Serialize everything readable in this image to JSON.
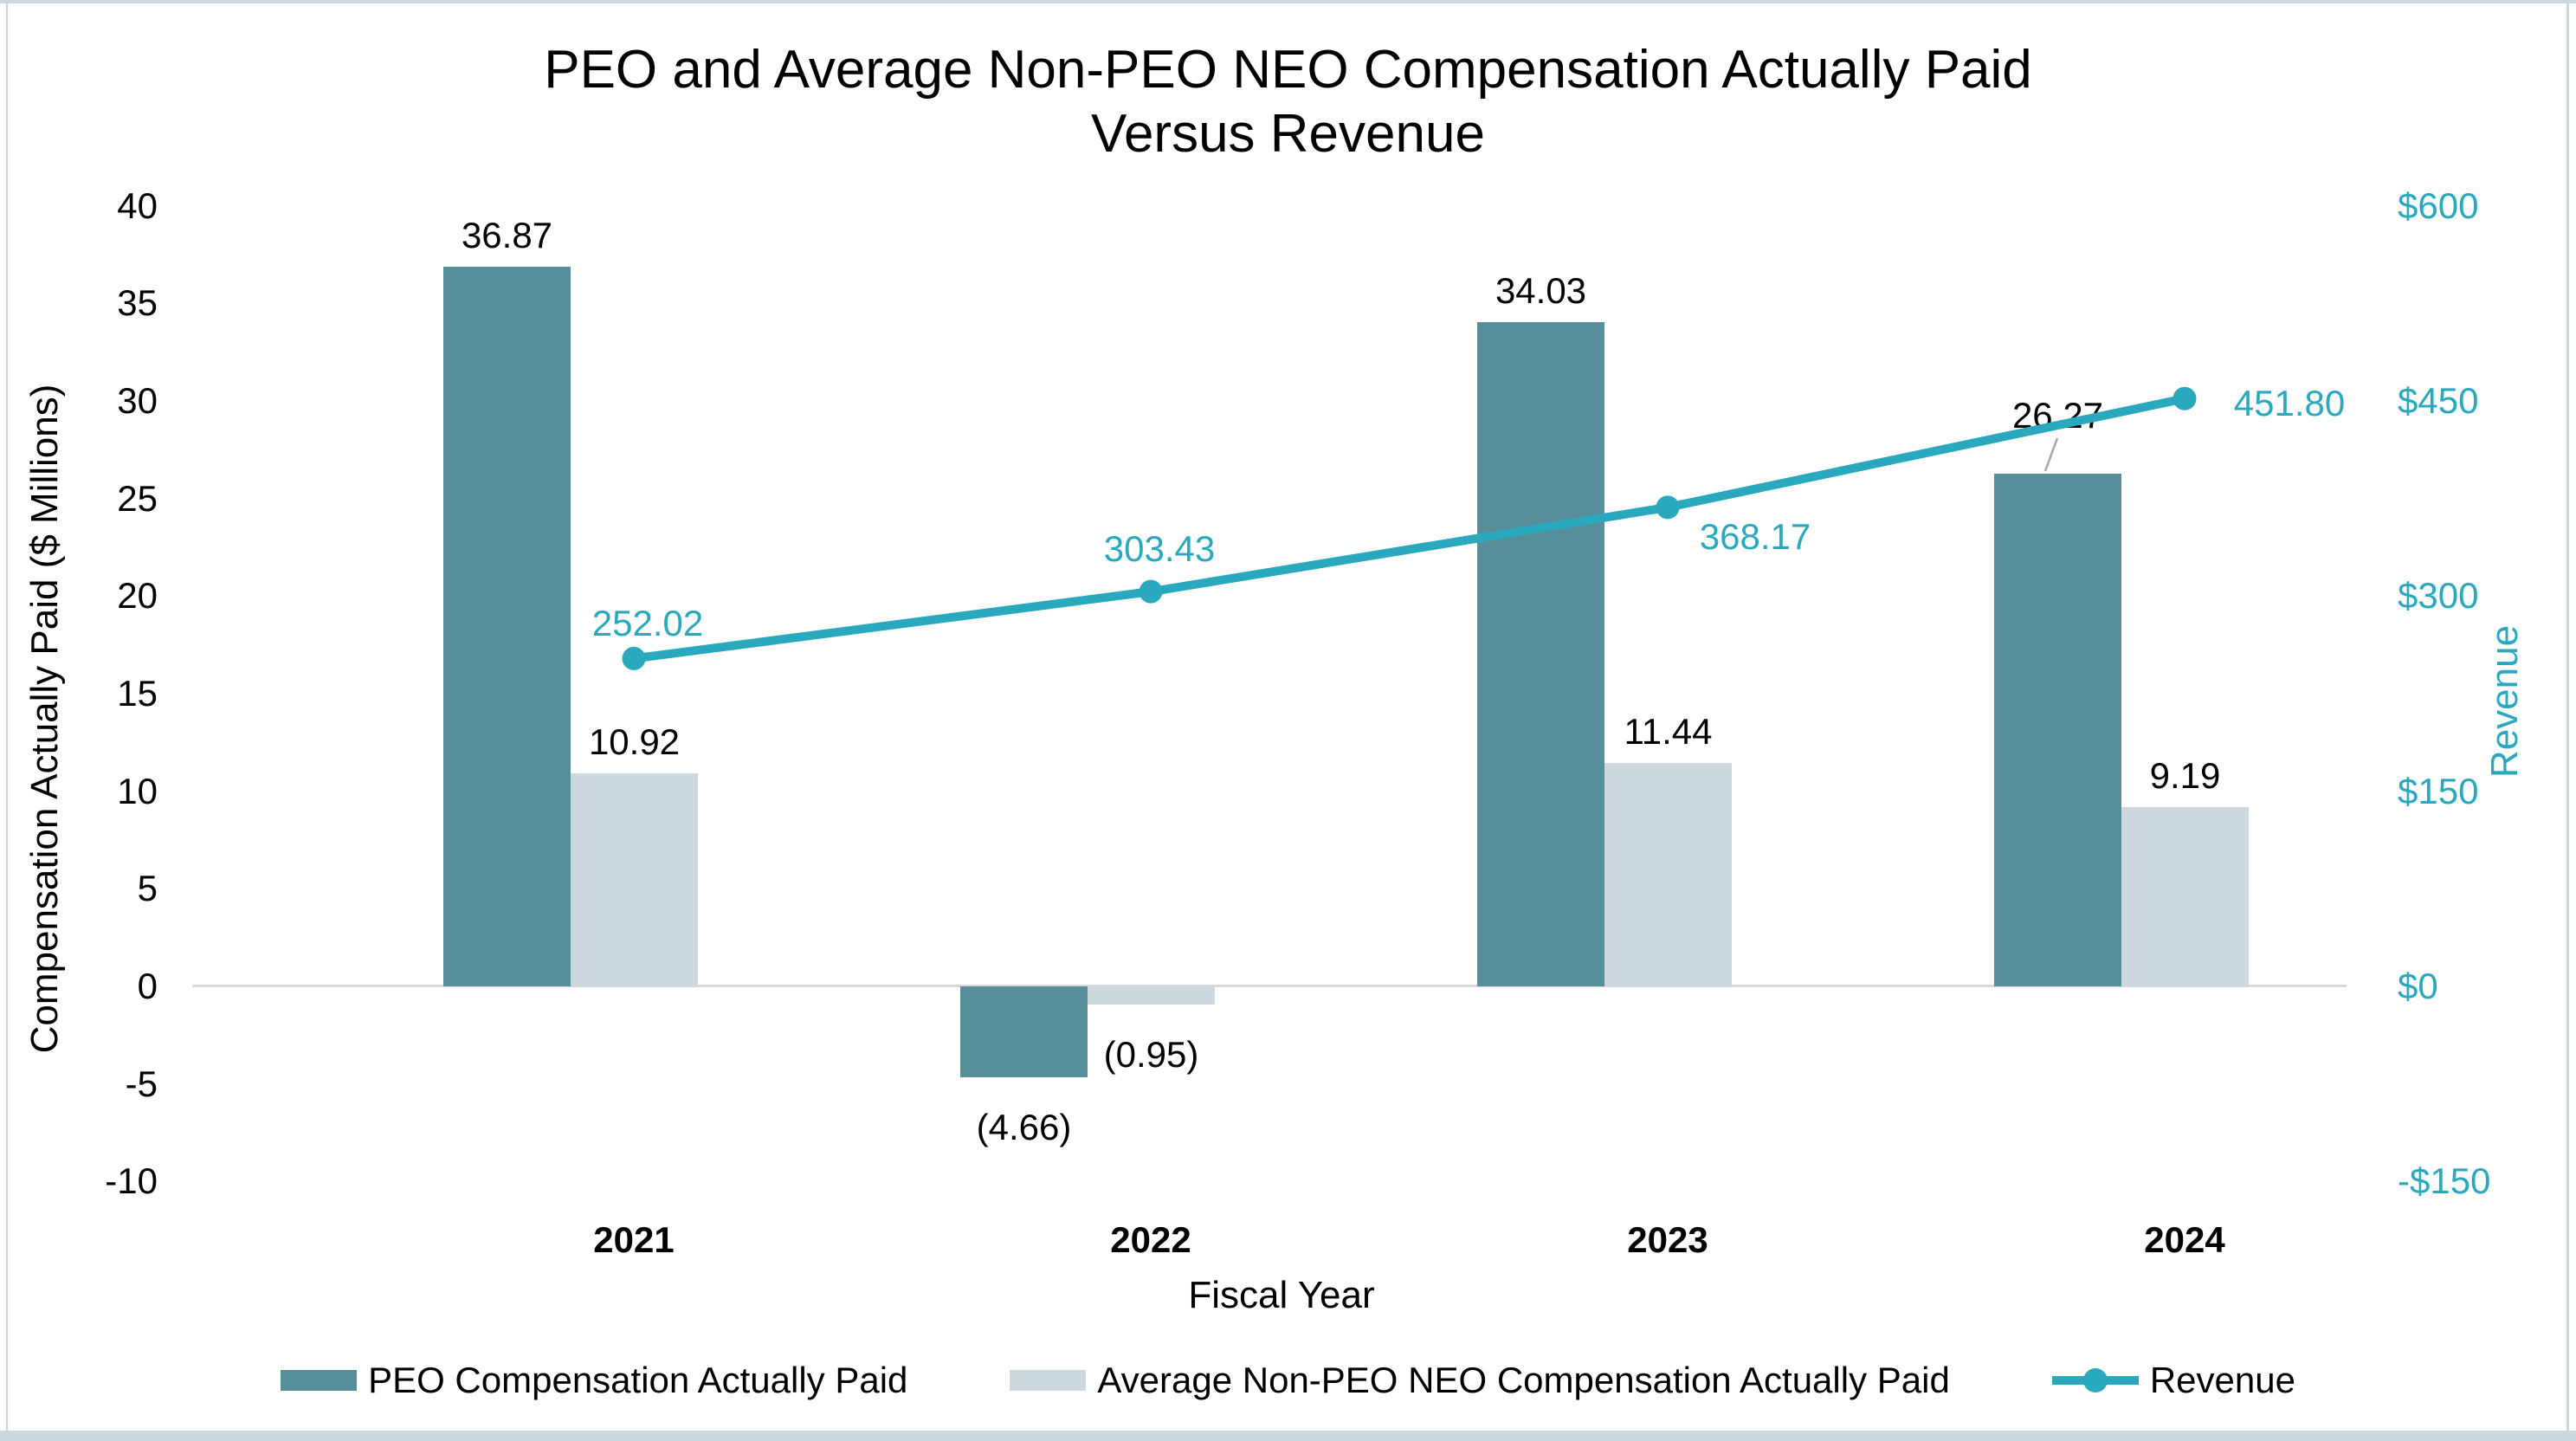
{
  "title": {
    "line1": "PEO and Average Non-PEO NEO Compensation Actually Paid",
    "line2": "Versus Revenue"
  },
  "axes": {
    "left": {
      "title": "Compensation Actually Paid ($ Millions)",
      "ticks": [
        {
          "label": "40",
          "value": 40
        },
        {
          "label": "35",
          "value": 35
        },
        {
          "label": "30",
          "value": 30
        },
        {
          "label": "25",
          "value": 25
        },
        {
          "label": "20",
          "value": 20
        },
        {
          "label": "15",
          "value": 15
        },
        {
          "label": "10",
          "value": 10
        },
        {
          "label": "5",
          "value": 5
        },
        {
          "label": "0",
          "value": 0
        },
        {
          "label": "-5",
          "value": -5
        },
        {
          "label": "-10",
          "value": -10
        }
      ]
    },
    "right": {
      "title": "Revenue",
      "ticks": [
        {
          "label": "$600",
          "value": 600
        },
        {
          "label": "$450",
          "value": 450
        },
        {
          "label": "$300",
          "value": 300
        },
        {
          "label": "$150",
          "value": 150
        },
        {
          "label": "$0",
          "value": 0
        },
        {
          "label": "-$150",
          "value": -150
        }
      ]
    },
    "x": {
      "title": "Fiscal Year",
      "categories": [
        "2021",
        "2022",
        "2023",
        "2024"
      ]
    }
  },
  "legend": [
    {
      "label": "PEO Compensation Actually Paid",
      "swatch": "bar-dark"
    },
    {
      "label": "Average Non-PEO NEO Compensation Actually Paid",
      "swatch": "bar-light"
    },
    {
      "label": "Revenue",
      "swatch": "line"
    }
  ],
  "colors": {
    "peo_bar": "#568f99",
    "non_peo_bar": "#cdd9df",
    "revenue": "#29a8be",
    "zero_line": "#d9d9d9",
    "leader_line": "#a6a6a6",
    "frame_edge": "#cbd9df"
  },
  "chart_data": {
    "type": "combo",
    "categories": [
      "2021",
      "2022",
      "2023",
      "2024"
    ],
    "series": [
      {
        "name": "PEO Compensation Actually Paid",
        "type": "bar",
        "axis": "left",
        "values": [
          36.87,
          -4.66,
          34.03,
          26.27
        ],
        "labels": [
          "36.87",
          "(4.66)",
          "34.03",
          "26.27"
        ]
      },
      {
        "name": "Average Non-PEO NEO Compensation Actually Paid",
        "type": "bar",
        "axis": "left",
        "values": [
          10.92,
          -0.95,
          11.44,
          9.19
        ],
        "labels": [
          "10.92",
          "(0.95)",
          "11.44",
          "9.19"
        ]
      },
      {
        "name": "Revenue",
        "type": "line",
        "axis": "right",
        "values": [
          252.02,
          303.43,
          368.17,
          451.8
        ],
        "labels": [
          "252.02",
          "303.43",
          "368.17",
          "451.80"
        ]
      }
    ],
    "left_axis_range": [
      -10,
      40
    ],
    "right_axis_range": [
      -150,
      600
    ],
    "grid": "zero-baseline-only",
    "legend_position": "bottom",
    "title": "PEO and Average Non-PEO NEO Compensation Actually Paid Versus Revenue",
    "xlabel": "Fiscal Year",
    "ylabel_left": "Compensation Actually Paid ($ Millions)",
    "ylabel_right": "Revenue"
  }
}
